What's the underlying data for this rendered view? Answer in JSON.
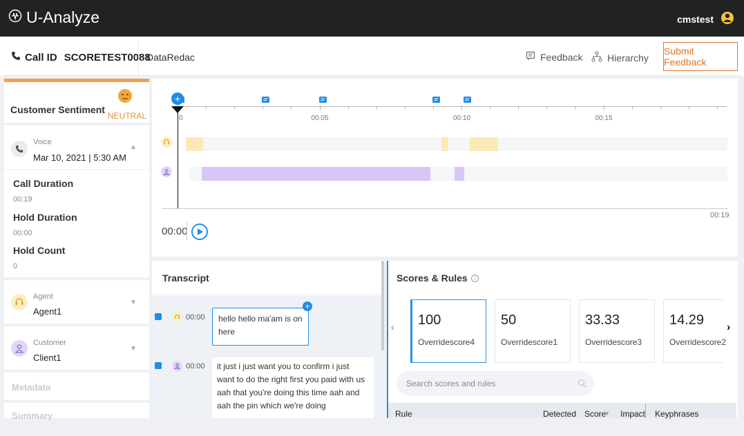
{
  "app": {
    "brand": "U-Analyze",
    "user": "cmstest"
  },
  "call": {
    "id_label": "Call ID",
    "id": "SCORETEST0088",
    "source": "DataRedac",
    "feedback_label": "Feedback",
    "hierarchy_label": "Hierarchy",
    "submit_label": "Submit Feedback"
  },
  "sentiment": {
    "title": "Customer Sentiment",
    "value": "NEUTRAL"
  },
  "voice": {
    "type": "Voice",
    "date": "Mar 10, 2021 | 5:30 AM",
    "call_duration_label": "Call Duration",
    "call_duration": "00:19",
    "hold_duration_label": "Hold Duration",
    "hold_duration": "00:00",
    "hold_count_label": "Hold Count",
    "hold_count": "0"
  },
  "agent": {
    "label": "Agent",
    "name": "Agent1"
  },
  "customer": {
    "label": "Customer",
    "name": "Client1"
  },
  "collapsed_sections": {
    "metadata": "Metadata",
    "summary": "Summary"
  },
  "timeline": {
    "ticks": [
      "0",
      "00:05",
      "00:10",
      "00:15"
    ],
    "end_time": "00:19",
    "current_time": "00:00",
    "total_seconds": 19,
    "comment_markers_sec": [
      0.1,
      3.1,
      5.1,
      9.1,
      10.2
    ],
    "agent_segments_sec": [
      [
        0.3,
        0.9
      ],
      [
        9.3,
        9.55
      ],
      [
        10.3,
        11.3
      ]
    ],
    "customer_segments_sec": [
      [
        0.85,
        8.9
      ],
      [
        9.75,
        10.1
      ]
    ],
    "accent_agent": "#fbe9b7",
    "accent_customer": "#d7c6f7"
  },
  "transcript": {
    "title": "Transcript",
    "entries": [
      {
        "speaker": "agent",
        "time": "00:00",
        "text": "hello hello ma'am is on here"
      },
      {
        "speaker": "customer",
        "time": "00:00",
        "text": "it just i just want you to confirm i just want to do the right first you paid with us aah that you're doing this time aah and aah the pin which we're doing"
      }
    ]
  },
  "scores": {
    "title": "Scores & Rules",
    "cards": [
      {
        "value": "100",
        "name": "Overridescore4"
      },
      {
        "value": "50",
        "name": "Overridescore1"
      },
      {
        "value": "33.33",
        "name": "Overridescore3"
      },
      {
        "value": "14.29",
        "name": "Overridescore2"
      }
    ],
    "search_placeholder": "Search scores and rules",
    "columns": {
      "rule": "Rule",
      "detected": "Detected",
      "score": "Score",
      "impact": "Impact",
      "keyphrases": "Keyphrases"
    }
  }
}
